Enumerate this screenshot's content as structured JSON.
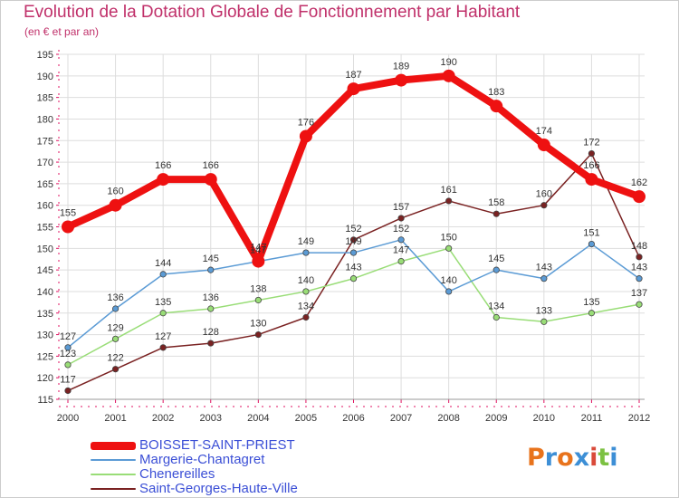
{
  "title": "Evolution de la Dotation Globale de Fonctionnement par Habitant",
  "subtitle": "(en € et par an)",
  "logo": {
    "text": "Proxiti",
    "colors": [
      "#e8731c",
      "#3d8fd6",
      "#e8731c",
      "#3d8fd6",
      "#d94a3a",
      "#7cc142",
      "#3d8fd6"
    ]
  },
  "colors": {
    "title": "#c0306a",
    "legend_text": "#3b4fd6",
    "grid": "#dddddd",
    "axis_tick": "#e01060"
  },
  "chart_data": {
    "type": "line",
    "title": "Evolution de la Dotation Globale de Fonctionnement par Habitant",
    "subtitle": "(en € et par an)",
    "xlabel": "",
    "ylabel": "",
    "categories": [
      "2000",
      "2001",
      "2002",
      "2003",
      "2004",
      "2005",
      "2006",
      "2007",
      "2008",
      "2009",
      "2010",
      "2011",
      "2012"
    ],
    "ylim": [
      115,
      195
    ],
    "yticks": [
      115,
      120,
      125,
      130,
      135,
      140,
      145,
      150,
      155,
      160,
      165,
      170,
      175,
      180,
      185,
      190,
      195
    ],
    "grid": true,
    "legend_position": "bottom-left",
    "series": [
      {
        "name": "BOISSET-SAINT-PRIEST",
        "color": "#ee1111",
        "values": [
          155,
          160,
          166,
          166,
          147,
          176,
          187,
          189,
          190,
          183,
          174,
          166,
          162
        ]
      },
      {
        "name": "Margerie-Chantagret",
        "color": "#5b9bd5",
        "values": [
          127,
          136,
          144,
          145,
          147,
          149,
          149,
          152,
          140,
          145,
          143,
          151,
          143
        ]
      },
      {
        "name": "Chenereilles",
        "color": "#99dd77",
        "values": [
          123,
          129,
          135,
          136,
          138,
          140,
          143,
          147,
          150,
          134,
          133,
          135,
          137
        ]
      },
      {
        "name": "Saint-Georges-Haute-Ville",
        "color": "#7a2222",
        "values": [
          117,
          122,
          127,
          128,
          130,
          134,
          152,
          157,
          161,
          158,
          160,
          172,
          148
        ]
      }
    ]
  }
}
